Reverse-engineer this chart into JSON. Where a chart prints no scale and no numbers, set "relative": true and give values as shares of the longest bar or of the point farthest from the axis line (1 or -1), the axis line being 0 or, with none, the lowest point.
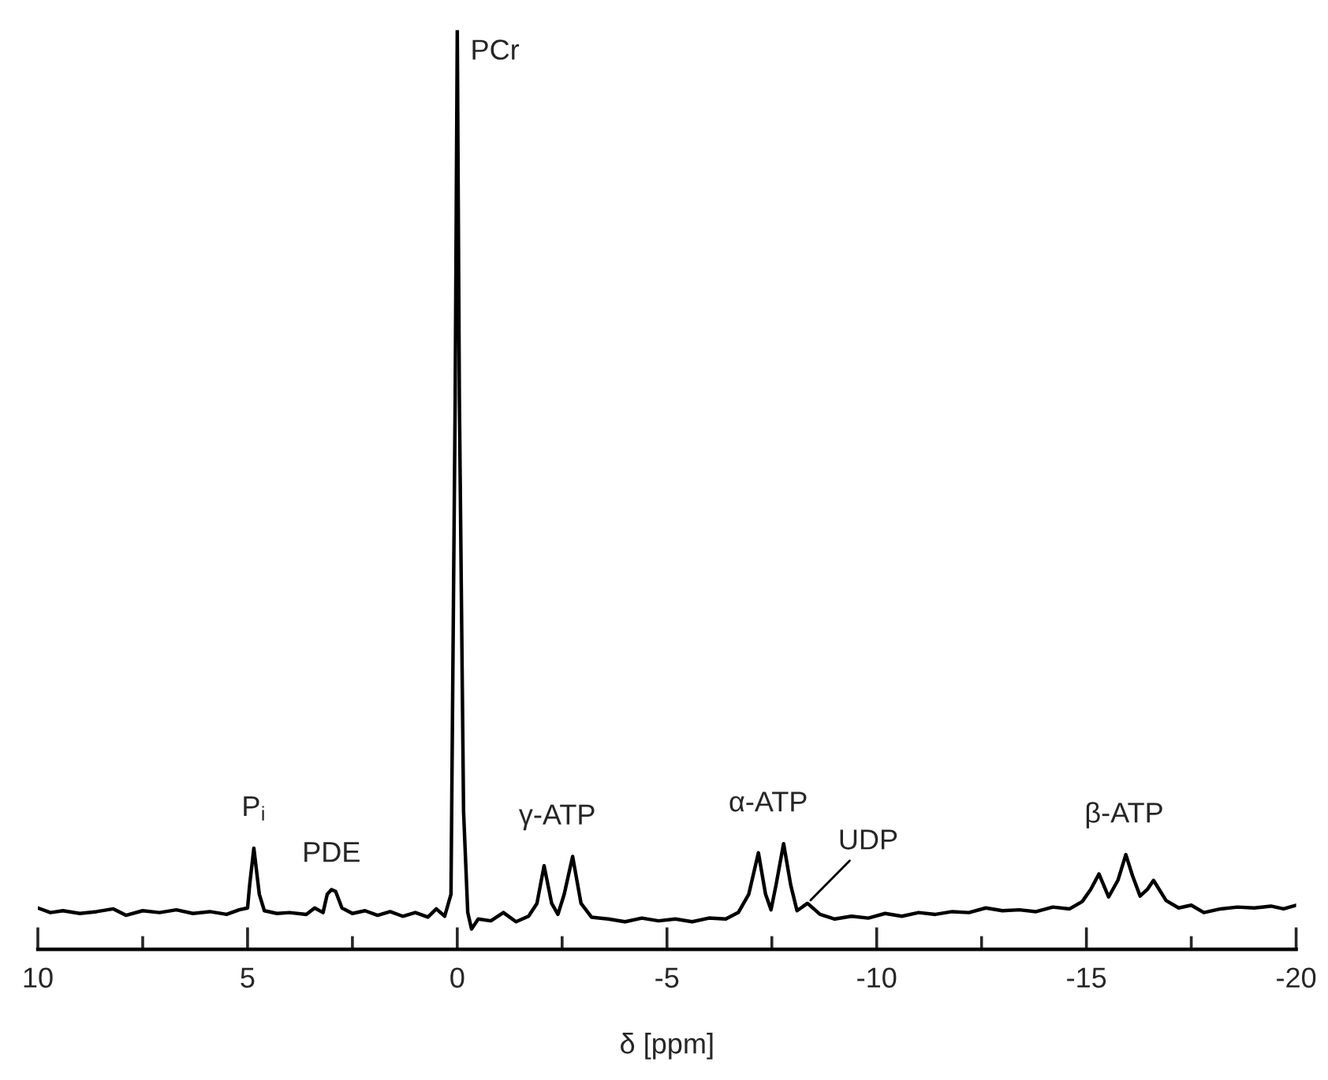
{
  "chart_data": {
    "type": "line",
    "relative": true,
    "xlabel": "δ [ppm]",
    "xlim": [
      10,
      -20
    ],
    "xticks": [
      10,
      {
        "value": 7.5,
        "label": null
      },
      5,
      {
        "value": 2.5,
        "label": null
      },
      0,
      {
        "value": -2.5,
        "label": null
      },
      -5,
      {
        "value": -7.5,
        "label": null
      },
      -10,
      {
        "value": -12.5,
        "label": null
      },
      -15,
      {
        "value": -17.5,
        "label": null
      },
      -20
    ],
    "grid": false,
    "legend": false,
    "marker": "none",
    "line_style": "solid",
    "series": [
      {
        "color": "#000000",
        "x": [
          10.0,
          9.7,
          9.4,
          9.0,
          8.6,
          8.2,
          7.9,
          7.5,
          7.1,
          6.7,
          6.3,
          5.9,
          5.5,
          5.2,
          5.0,
          4.95,
          4.85,
          4.72,
          4.6,
          4.3,
          4.0,
          3.6,
          3.4,
          3.2,
          3.1,
          3.0,
          2.9,
          2.75,
          2.5,
          2.2,
          1.9,
          1.6,
          1.3,
          1.0,
          0.7,
          0.5,
          0.3,
          0.15,
          0.05,
          0.0,
          -0.05,
          -0.15,
          -0.25,
          -0.34,
          -0.5,
          -0.8,
          -1.1,
          -1.4,
          -1.7,
          -1.9,
          -2.07,
          -2.25,
          -2.4,
          -2.55,
          -2.75,
          -2.95,
          -3.2,
          -3.6,
          -4.0,
          -4.4,
          -4.8,
          -5.2,
          -5.6,
          -6.0,
          -6.4,
          -6.7,
          -6.95,
          -7.18,
          -7.35,
          -7.48,
          -7.6,
          -7.78,
          -7.95,
          -8.1,
          -8.35,
          -8.65,
          -9.0,
          -9.4,
          -9.8,
          -10.2,
          -10.6,
          -11.0,
          -11.4,
          -11.8,
          -12.2,
          -12.6,
          -13.0,
          -13.4,
          -13.8,
          -14.2,
          -14.6,
          -14.9,
          -15.1,
          -15.3,
          -15.53,
          -15.75,
          -15.94,
          -16.1,
          -16.28,
          -16.45,
          -16.6,
          -16.9,
          -17.2,
          -17.5,
          -17.8,
          -18.2,
          -18.6,
          -19.0,
          -19.4,
          -19.7,
          -20.0
        ],
        "values": [
          0.045,
          0.04,
          0.042,
          0.039,
          0.041,
          0.044,
          0.037,
          0.042,
          0.04,
          0.043,
          0.039,
          0.041,
          0.038,
          0.043,
          0.045,
          0.07,
          0.11,
          0.06,
          0.042,
          0.039,
          0.04,
          0.038,
          0.045,
          0.04,
          0.06,
          0.065,
          0.063,
          0.045,
          0.039,
          0.042,
          0.037,
          0.041,
          0.036,
          0.04,
          0.035,
          0.044,
          0.036,
          0.06,
          0.6,
          1.0,
          0.6,
          0.15,
          0.04,
          0.022,
          0.033,
          0.031,
          0.04,
          0.03,
          0.036,
          0.05,
          0.091,
          0.05,
          0.038,
          0.06,
          0.101,
          0.05,
          0.035,
          0.033,
          0.03,
          0.034,
          0.031,
          0.033,
          0.03,
          0.034,
          0.033,
          0.04,
          0.06,
          0.105,
          0.06,
          0.043,
          0.07,
          0.115,
          0.07,
          0.042,
          0.05,
          0.038,
          0.033,
          0.036,
          0.034,
          0.039,
          0.036,
          0.04,
          0.038,
          0.041,
          0.04,
          0.045,
          0.042,
          0.043,
          0.041,
          0.046,
          0.044,
          0.052,
          0.065,
          0.082,
          0.057,
          0.075,
          0.103,
          0.08,
          0.058,
          0.065,
          0.075,
          0.053,
          0.045,
          0.048,
          0.04,
          0.044,
          0.046,
          0.045,
          0.047,
          0.044,
          0.048
        ]
      }
    ],
    "annotations": [
      {
        "text": "PCr",
        "x": 0.0,
        "y": 1.0
      },
      {
        "text": "P$_{i}$",
        "x": 4.85,
        "y": 0.11
      },
      {
        "text": "PDE",
        "x": 3.0,
        "y": 0.065
      },
      {
        "text": "γ-ATP",
        "x": -2.75,
        "y": 0.101
      },
      {
        "text": "α-ATP",
        "x": -7.78,
        "y": 0.115
      },
      {
        "text": "UDP",
        "x": -8.35,
        "y": 0.05
      },
      {
        "text": "β-ATP",
        "x": -15.9,
        "y": 0.103
      }
    ]
  }
}
